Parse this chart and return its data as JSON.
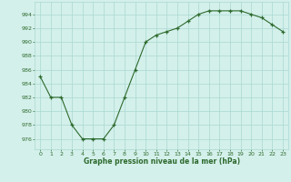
{
  "x": [
    0,
    1,
    2,
    3,
    4,
    5,
    6,
    7,
    8,
    9,
    10,
    11,
    12,
    13,
    14,
    15,
    16,
    17,
    18,
    19,
    20,
    21,
    22,
    23
  ],
  "y": [
    985,
    982,
    982,
    978,
    976,
    976,
    976,
    978,
    982,
    986,
    990,
    991,
    991.5,
    992,
    993,
    994,
    994.5,
    994.5,
    994.5,
    994.5,
    994,
    993.5,
    992.5,
    991.5
  ],
  "line_color": "#2d6a2d",
  "marker_color": "#2d6a2d",
  "bg_color": "#d4f0eb",
  "grid_color": "#a8d8d0",
  "xlabel": "Graphe pression niveau de la mer (hPa)",
  "yticks": [
    976,
    978,
    980,
    982,
    984,
    986,
    988,
    990,
    992,
    994
  ],
  "xticks": [
    0,
    1,
    2,
    3,
    4,
    5,
    6,
    7,
    8,
    9,
    10,
    11,
    12,
    13,
    14,
    15,
    16,
    17,
    18,
    19,
    20,
    21,
    22,
    23
  ],
  "ylim": [
    974.5,
    995.8
  ],
  "xlim": [
    -0.5,
    23.5
  ]
}
